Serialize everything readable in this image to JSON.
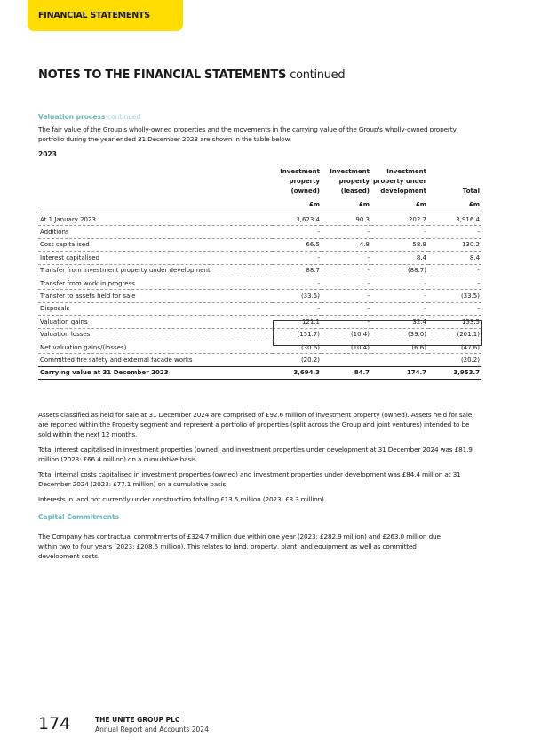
{
  "header": {
    "section_tab": "FINANCIAL STATEMENTS",
    "title": "NOTES TO THE FINANCIAL STATEMENTS",
    "title_suffix": "continued"
  },
  "valuation": {
    "heading": "Valuation process",
    "heading_suffix": "continued",
    "intro": "The fair value of the Group's wholly-owned properties and the movements in the carrying value of the Group's wholly-owned property portfolio during the year ended 31 December 2023 are shown in the table below.",
    "year": "2023"
  },
  "table": {
    "columns": [
      "Investment property (owned)",
      "Investment property (leased)",
      "Investment property under development",
      "Total"
    ],
    "units": [
      "£m",
      "£m",
      "£m",
      "£m"
    ],
    "rows": [
      {
        "label": "At 1 January 2023",
        "values": [
          "3,623.4",
          "90.3",
          "202.7",
          "3,916.4"
        ]
      },
      {
        "label": "Additions",
        "values": [
          "-",
          "-",
          "-",
          "-"
        ]
      },
      {
        "label": "Cost capitalised",
        "values": [
          "66.5",
          "4.8",
          "58.9",
          "130.2"
        ]
      },
      {
        "label": "Interest capitalised",
        "values": [
          "-",
          "-",
          "8.4",
          "8.4"
        ]
      },
      {
        "label": "Transfer from investment property under development",
        "values": [
          "88.7",
          "-",
          "(88.7)",
          "-"
        ]
      },
      {
        "label": "Transfer from work in progress",
        "values": [
          "-",
          "-",
          "-",
          "-"
        ]
      },
      {
        "label": "Transfer to assets held for sale",
        "values": [
          "(33.5)",
          "-",
          "-",
          "(33.5)"
        ]
      },
      {
        "label": "Disposals",
        "values": [
          "-",
          "-",
          "-",
          "-"
        ]
      },
      {
        "label": "Valuation gains",
        "values": [
          "121.1",
          "-",
          "32.4",
          "153.5"
        ]
      },
      {
        "label": "Valuation losses",
        "values": [
          "(151.7)",
          "(10.4)",
          "(39.0)",
          "(201.1)"
        ]
      },
      {
        "label": "Net valuation gains/(losses)",
        "values": [
          "(30.6)",
          "(10.4)",
          "(6.6)",
          "(47.6)"
        ]
      },
      {
        "label": "Committed fire safety and external facade works",
        "values": [
          "(20.2)",
          "",
          "",
          "(20.2)"
        ]
      },
      {
        "label": "Carrying value at 31 December 2023",
        "values": [
          "3,694.3",
          "84.7",
          "174.7",
          "3,953.7"
        ]
      }
    ]
  },
  "paragraphs": [
    "Assets classified as held for sale at 31 December 2024 are comprised of £92.6 million of investment property (owned). Assets held for sale are reported within the Property segment and represent a portfolio of properties (split across the Group and joint ventures) intended to be sold within the next 12 months.",
    "Total interest capitalised in investment properties (owned) and investment properties under development at 31 December 2024 was £81.9 million (2023: £66.4 million) on a cumulative basis.",
    "Total internal costs capitalised in investment properties (owned) and investment properties under development was £84.4 million at 31 December 2024 (2023: £77.1 million) on a cumulative basis.",
    "Interests in land not currently under construction totalling £13.5 million (2023: £8.3 million)."
  ],
  "capital": {
    "heading": "Capital Commitments",
    "text": "The Company has contractual commitments of £324.7 million due within one year (2023: £282.9 million) and £263.0 million due within two to four years (2023: £208.5 million). This relates to land, property, plant, and equipment as well as committed development costs."
  },
  "footer": {
    "page": "174",
    "company": "THE UNITE GROUP PLC",
    "report": "Annual Report and Accounts 2024"
  },
  "colors": {
    "tab": "#ffdd00",
    "subheading": "#6bb5b8"
  }
}
